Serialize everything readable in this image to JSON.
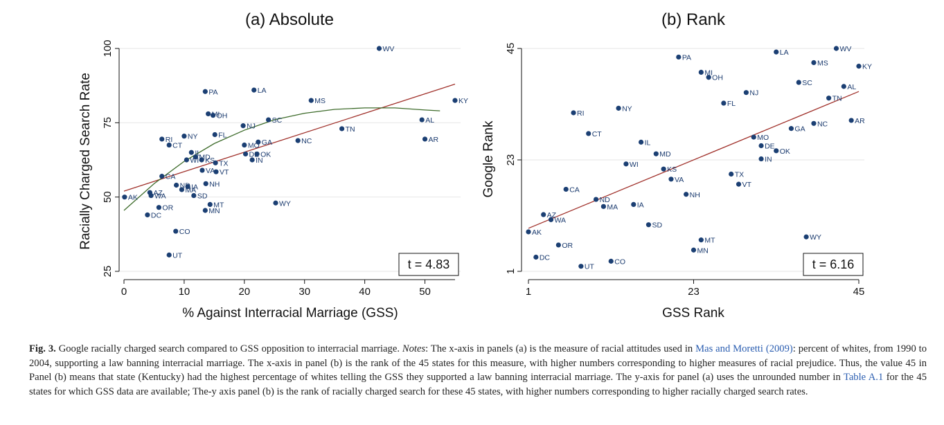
{
  "chart_data": [
    {
      "type": "scatter",
      "title": "(a) Absolute",
      "xlabel": "% Against Interracial Marriage (GSS)",
      "ylabel": "Racially Charged Search Rate",
      "xlim": [
        0,
        55
      ],
      "ylim": [
        25,
        100
      ],
      "xticks": [
        0,
        10,
        20,
        30,
        40,
        50
      ],
      "yticks": [
        25,
        50,
        75,
        100
      ],
      "grid": "horizontal",
      "annotation": "t = 4.83",
      "colors": {
        "points": "#1b3f73",
        "linear_fit": "#a0302a",
        "quadratic_fit": "#3d6b2a"
      },
      "linear_fit": {
        "x": [
          0,
          55
        ],
        "y": [
          52,
          88
        ]
      },
      "quadratic_fit": {
        "x": [
          0,
          5,
          10,
          15,
          20,
          25,
          30,
          35,
          40,
          45,
          50,
          52.5
        ],
        "y": [
          45.5,
          54.5,
          62,
          68,
          72.5,
          76,
          78.2,
          79.5,
          80,
          80,
          79.3,
          79
        ]
      },
      "points": [
        {
          "label": "WV",
          "x": 42.4,
          "y": 100
        },
        {
          "label": "KY",
          "x": 55.0,
          "y": 82.5
        },
        {
          "label": "PA",
          "x": 13.5,
          "y": 85.5
        },
        {
          "label": "LA",
          "x": 21.6,
          "y": 86
        },
        {
          "label": "MS",
          "x": 31.1,
          "y": 82.5
        },
        {
          "label": "MI",
          "x": 14.0,
          "y": 78
        },
        {
          "label": "OH",
          "x": 14.8,
          "y": 77.5
        },
        {
          "label": "SC",
          "x": 24.0,
          "y": 76
        },
        {
          "label": "AL",
          "x": 49.5,
          "y": 76
        },
        {
          "label": "NJ",
          "x": 19.8,
          "y": 74
        },
        {
          "label": "TN",
          "x": 36.2,
          "y": 73
        },
        {
          "label": "FL",
          "x": 15.1,
          "y": 71
        },
        {
          "label": "NY",
          "x": 10.0,
          "y": 70.5
        },
        {
          "label": "RI",
          "x": 6.3,
          "y": 69.5
        },
        {
          "label": "AR",
          "x": 50.0,
          "y": 69.5
        },
        {
          "label": "CT",
          "x": 7.5,
          "y": 67.5
        },
        {
          "label": "GA",
          "x": 22.3,
          "y": 68.5
        },
        {
          "label": "NC",
          "x": 28.9,
          "y": 69
        },
        {
          "label": "MO",
          "x": 20.0,
          "y": 67.5
        },
        {
          "label": "IL",
          "x": 11.2,
          "y": 65
        },
        {
          "label": "MD",
          "x": 11.9,
          "y": 63.5
        },
        {
          "label": "DE",
          "x": 20.2,
          "y": 64.5
        },
        {
          "label": "OK",
          "x": 22.1,
          "y": 64.5
        },
        {
          "label": "WI",
          "x": 10.4,
          "y": 62.5
        },
        {
          "label": "KS",
          "x": 12.9,
          "y": 62.5
        },
        {
          "label": "IN",
          "x": 21.3,
          "y": 62.5
        },
        {
          "label": "TX",
          "x": 15.2,
          "y": 61.5
        },
        {
          "label": "VA",
          "x": 13.0,
          "y": 59
        },
        {
          "label": "VT",
          "x": 15.3,
          "y": 58.5
        },
        {
          "label": "CA",
          "x": 6.3,
          "y": 57
        },
        {
          "label": "NH",
          "x": 13.6,
          "y": 54.5
        },
        {
          "label": "ND",
          "x": 8.7,
          "y": 54
        },
        {
          "label": "IA",
          "x": 10.6,
          "y": 53.5
        },
        {
          "label": "MA",
          "x": 9.6,
          "y": 52.5
        },
        {
          "label": "AZ",
          "x": 4.3,
          "y": 51.5
        },
        {
          "label": "WA",
          "x": 4.5,
          "y": 50.5
        },
        {
          "label": "SD",
          "x": 11.6,
          "y": 50.5
        },
        {
          "label": "AK",
          "x": 0.1,
          "y": 50
        },
        {
          "label": "WY",
          "x": 25.2,
          "y": 48
        },
        {
          "label": "MT",
          "x": 14.3,
          "y": 47.5
        },
        {
          "label": "OR",
          "x": 5.8,
          "y": 46.5
        },
        {
          "label": "MN",
          "x": 13.5,
          "y": 45.5
        },
        {
          "label": "DC",
          "x": 3.9,
          "y": 44
        },
        {
          "label": "CO",
          "x": 8.6,
          "y": 38.5
        },
        {
          "label": "UT",
          "x": 7.5,
          "y": 30.5
        }
      ]
    },
    {
      "type": "scatter",
      "title": "(b) Rank",
      "xlabel": "GSS Rank",
      "ylabel": "Google Rank",
      "xlim": [
        1,
        45
      ],
      "ylim": [
        1,
        45
      ],
      "xticks": [
        1,
        23,
        45
      ],
      "yticks": [
        1,
        23,
        45
      ],
      "grid": "horizontal",
      "annotation": "t = 6.16",
      "colors": {
        "points": "#1b3f73",
        "linear_fit": "#a0302a"
      },
      "linear_fit": {
        "x": [
          1,
          45
        ],
        "y": [
          9.5,
          36.5
        ]
      },
      "points": [
        {
          "label": "WV",
          "x": 42,
          "y": 45
        },
        {
          "label": "LA",
          "x": 34,
          "y": 44.3
        },
        {
          "label": "PA",
          "x": 21,
          "y": 43.3
        },
        {
          "label": "MS",
          "x": 39,
          "y": 42.2
        },
        {
          "label": "KY",
          "x": 45,
          "y": 41.5
        },
        {
          "label": "MI",
          "x": 24,
          "y": 40.3
        },
        {
          "label": "OH",
          "x": 25,
          "y": 39.3
        },
        {
          "label": "SC",
          "x": 37,
          "y": 38.3
        },
        {
          "label": "AL",
          "x": 43,
          "y": 37.5
        },
        {
          "label": "NJ",
          "x": 30,
          "y": 36.3
        },
        {
          "label": "TN",
          "x": 41,
          "y": 35.2
        },
        {
          "label": "FL",
          "x": 27,
          "y": 34.2
        },
        {
          "label": "NY",
          "x": 13,
          "y": 33.2
        },
        {
          "label": "RI",
          "x": 7,
          "y": 32.3
        },
        {
          "label": "AR",
          "x": 44,
          "y": 30.8
        },
        {
          "label": "NC",
          "x": 39,
          "y": 30.2
        },
        {
          "label": "GA",
          "x": 36,
          "y": 29.2
        },
        {
          "label": "CT",
          "x": 9,
          "y": 28.2
        },
        {
          "label": "MO",
          "x": 31,
          "y": 27.5
        },
        {
          "label": "IL",
          "x": 16,
          "y": 26.5
        },
        {
          "label": "DE",
          "x": 32,
          "y": 25.8
        },
        {
          "label": "OK",
          "x": 34,
          "y": 24.8
        },
        {
          "label": "MD",
          "x": 18,
          "y": 24.2
        },
        {
          "label": "IN",
          "x": 32,
          "y": 23.2
        },
        {
          "label": "WI",
          "x": 14,
          "y": 22.2
        },
        {
          "label": "KS",
          "x": 19,
          "y": 21.2
        },
        {
          "label": "TX",
          "x": 28,
          "y": 20.2
        },
        {
          "label": "VA",
          "x": 20,
          "y": 19.2
        },
        {
          "label": "VT",
          "x": 29,
          "y": 18.2
        },
        {
          "label": "CA",
          "x": 6,
          "y": 17.2
        },
        {
          "label": "NH",
          "x": 22,
          "y": 16.2
        },
        {
          "label": "ND",
          "x": 10,
          "y": 15.2
        },
        {
          "label": "IA",
          "x": 15,
          "y": 14.2
        },
        {
          "label": "MA",
          "x": 11,
          "y": 13.8
        },
        {
          "label": "AZ",
          "x": 3,
          "y": 12.2
        },
        {
          "label": "WA",
          "x": 4,
          "y": 11.2
        },
        {
          "label": "SD",
          "x": 17,
          "y": 10.2
        },
        {
          "label": "AK",
          "x": 1,
          "y": 8.8
        },
        {
          "label": "WY",
          "x": 38,
          "y": 7.8
        },
        {
          "label": "MT",
          "x": 24,
          "y": 7.2
        },
        {
          "label": "OR",
          "x": 5,
          "y": 6.2
        },
        {
          "label": "MN",
          "x": 23,
          "y": 5.2
        },
        {
          "label": "DC",
          "x": 2,
          "y": 3.8
        },
        {
          "label": "CO",
          "x": 12,
          "y": 3.0
        },
        {
          "label": "UT",
          "x": 8,
          "y": 2.0
        }
      ]
    }
  ],
  "caption": {
    "fig_label": "Fig. 3.",
    "part1": " Google racially charged search compared to GSS opposition to interracial marriage. ",
    "notes_label": "Notes",
    "part2": ": The x-axis in panels (a) is the measure of racial attitudes used in ",
    "link1": "Mas and Moretti (2009)",
    "part3": ": percent of whites, from 1990 to 2004, supporting a law banning interracial marriage. The x-axis in panel (b) is the rank of the 45 states for this measure, with higher numbers corresponding to higher measures of racial prejudice. Thus, the value 45 in Panel (b) means that state (Kentucky) had the highest percentage of whites telling the GSS they supported a law banning interracial marriage. The y-axis for panel (a) uses the unrounded number in ",
    "link2": "Table A.1",
    "part4": " for the 45 states for which GSS data are available; The-y axis panel (b) is the rank of racially charged search for these 45 states, with higher numbers corresponding to higher racially charged search rates."
  }
}
